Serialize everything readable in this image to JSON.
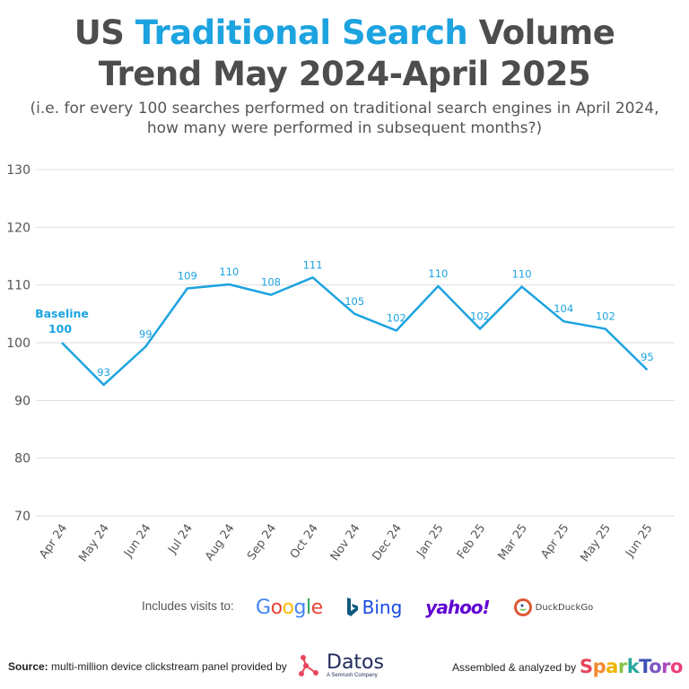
{
  "title": {
    "prefix": "US ",
    "highlight": "Traditional Search",
    "suffix_line1": " Volume",
    "line2": "Trend May 2024-April 2025"
  },
  "subtitle": {
    "line1": "(i.e. for every 100 searches performed on traditional search engines in April 2024,",
    "line2": "how many were performed in subsequent months?)"
  },
  "colors": {
    "accent": "#1ca3e0",
    "title": "#4d4d4d",
    "grid": "#dddddd",
    "axis_text": "#555555"
  },
  "chart_data": {
    "type": "line",
    "categories": [
      "Apr 24",
      "May 24",
      "Jun 24",
      "Jul 24",
      "Aug 24",
      "Sep 24",
      "Oct 24",
      "Nov 24",
      "Dec 24",
      "Jan 25",
      "Feb 25",
      "Mar 25",
      "Apr 25",
      "May 25",
      "Jun 25"
    ],
    "values": [
      100,
      92.7,
      99.3,
      109.4,
      110.1,
      108.3,
      111.3,
      105,
      102.1,
      109.8,
      102.4,
      109.7,
      103.7,
      102.4,
      95.3
    ],
    "data_labels": [
      "100",
      "93",
      "99",
      "109",
      "110",
      "108",
      "111",
      "105",
      "102",
      "110",
      "102",
      "110",
      "104",
      "102",
      "95"
    ],
    "baseline_label": "Baseline",
    "ylim": [
      70,
      130
    ],
    "yticks": [
      70,
      80,
      90,
      100,
      110,
      120,
      130
    ],
    "grid": true,
    "legend": "none"
  },
  "footer": {
    "includes_label": "Includes visits to:",
    "engines": {
      "google": "Google",
      "bing": "Bing",
      "yahoo": "yahoo!",
      "duckduckgo": "DuckDuckGo"
    },
    "source_label": "Source:",
    "source_text": " multi-million device clickstream panel provided by",
    "datos": "Datos",
    "datos_sub": "A Semrush Company",
    "assembled": "Assembled & analyzed by",
    "sparktoro": "SparkToro"
  }
}
